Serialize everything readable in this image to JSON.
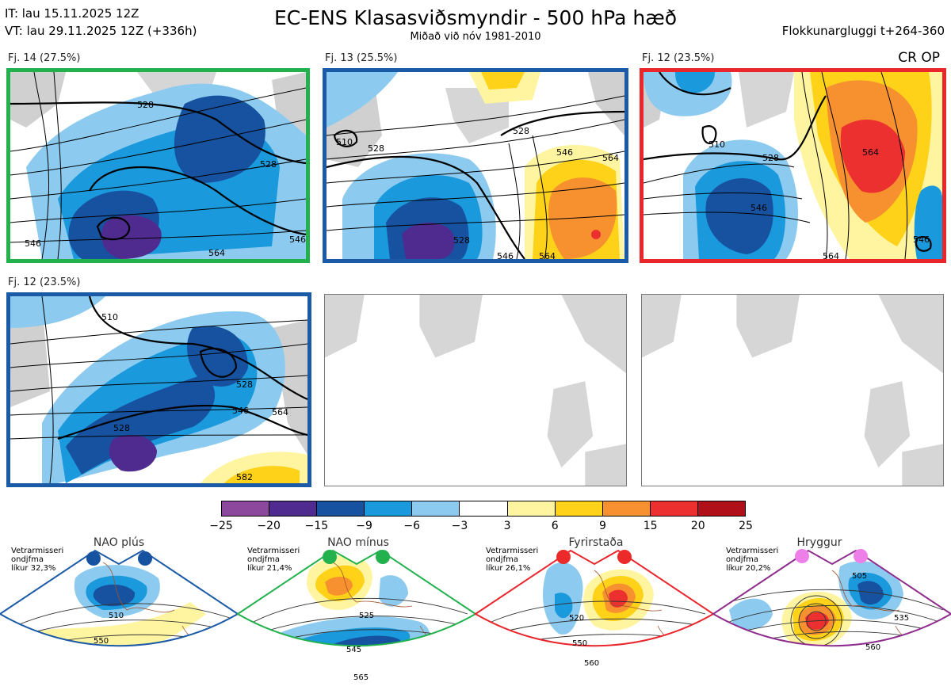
{
  "header": {
    "it_line": "IT: lau 15.11.2025 12Z",
    "vt_line": "VT: lau 29.11.2025 12Z  (+336h)",
    "title": "EC-ENS Klasasviðsmyndir - 500 hPa hæð",
    "subtitle": "Miðað við nóv 1981-2010",
    "window": "Flokkunargluggi t+264-360",
    "cr_label": "CR OP"
  },
  "panels": [
    {
      "label": "Fj. 14 (27.5%)",
      "frame_color": "#22b14c",
      "contours": [
        "528",
        "546",
        "528",
        "564",
        "546"
      ]
    },
    {
      "label": "Fj. 13 (25.5%)",
      "frame_color": "#1a5aa6",
      "contours": [
        "510",
        "528",
        "528",
        "546",
        "564",
        "528",
        "546",
        "564"
      ]
    },
    {
      "label": "Fj. 12 (23.5%)",
      "frame_color": "#e8262b",
      "contours": [
        "510",
        "528",
        "546",
        "564",
        "546",
        "564"
      ]
    },
    {
      "label": "Fj. 12 (23.5%)",
      "frame_color": "#1a5aa6",
      "contours": [
        "510",
        "528",
        "528",
        "546",
        "564",
        "582"
      ]
    }
  ],
  "colorbar": {
    "colors": [
      "#8b489c",
      "#4f2a8f",
      "#1752a1",
      "#1a99dc",
      "#8ccbef",
      "#ffffff",
      "#fff5a0",
      "#ffd21a",
      "#f7902e",
      "#ec3030",
      "#b01018"
    ],
    "ticks": [
      "−25",
      "−20",
      "−15",
      "−9",
      "−6",
      "−3",
      "3",
      "6",
      "9",
      "15",
      "20",
      "25"
    ]
  },
  "regimes": [
    {
      "name": "NAO plús",
      "note_lines": [
        "Vetrarmisseri",
        "ondjfma",
        "líkur 32,3%"
      ],
      "color": "#1a5aa6",
      "dot_color": "#1752a1",
      "contours": [
        "510",
        "550"
      ]
    },
    {
      "name": "NAO mínus",
      "note_lines": [
        "Vetrarmisseri",
        "ondjfma",
        "líkur 21,4%"
      ],
      "color": "#22b14c",
      "dot_color": "#22b14c",
      "contours": [
        "525",
        "545",
        "565"
      ]
    },
    {
      "name": "Fyrirstaða",
      "note_lines": [
        "Vetrarmisseri",
        "ondjfma",
        "líkur 26,1%"
      ],
      "color": "#e8262b",
      "dot_color": "#ec2a2a",
      "contours": [
        "520",
        "550",
        "560"
      ]
    },
    {
      "name": "Hryggur",
      "note_lines": [
        "Vetrarmisseri",
        "ondjfma",
        "líkur 20,2%"
      ],
      "color": "#8e2d8e",
      "dot_color": "#ee7ee8",
      "contours": [
        "505",
        "535",
        "560"
      ]
    }
  ]
}
